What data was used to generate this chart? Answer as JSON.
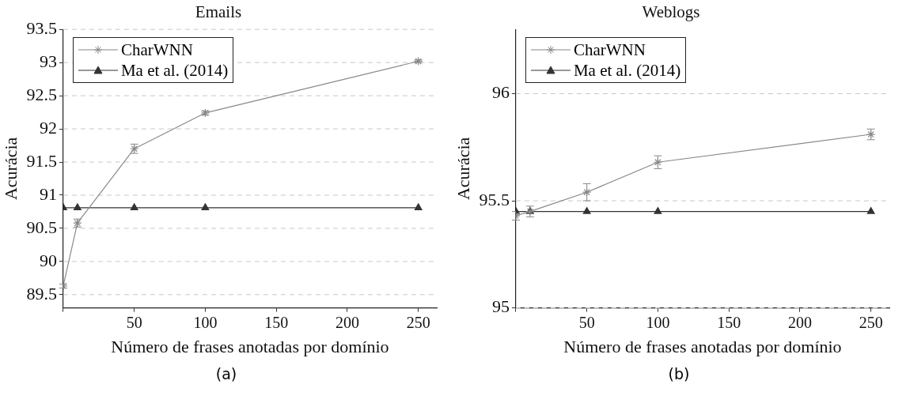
{
  "chart_data": [
    {
      "type": "line",
      "title": "Emails",
      "xlabel": "Número de frases anotadas por domínio",
      "ylabel": "Acurácia",
      "x": [
        0,
        10,
        50,
        100,
        250
      ],
      "series": [
        {
          "name": "CharWNN",
          "color": "#888888",
          "marker": "cross",
          "values": [
            89.63,
            90.58,
            91.7,
            92.24,
            93.02
          ],
          "errors": [
            0.03,
            0.06,
            0.07,
            0.03,
            0.02
          ]
        },
        {
          "name": "Ma et al. (2014)",
          "color": "#333333",
          "marker": "triangle",
          "values": [
            90.81,
            90.81,
            90.81,
            90.81,
            90.81
          ]
        }
      ],
      "xlim": [
        0,
        263
      ],
      "xticks": [
        {
          "value": 0,
          "label": null
        },
        50,
        100,
        150,
        200,
        250
      ],
      "ylim": [
        89.3,
        93.5
      ],
      "yticks": [
        89.5,
        90,
        90.5,
        91,
        91.5,
        92,
        92.5,
        93,
        93.5
      ],
      "grid": "y",
      "legend": "top left",
      "annotations": [
        "(a)"
      ]
    },
    {
      "type": "line",
      "title": "Weblogs",
      "xlabel": "Número de frases anotadas por domínio",
      "ylabel": "Acurácia",
      "x": [
        0,
        10,
        50,
        100,
        250
      ],
      "series": [
        {
          "name": "CharWNN",
          "color": "#888888",
          "marker": "cross",
          "values": [
            95.43,
            95.45,
            95.54,
            95.68,
            95.81
          ],
          "errors": [
            0.02,
            0.025,
            0.04,
            0.03,
            0.025
          ]
        },
        {
          "name": "Ma et al. (2014)",
          "color": "#333333",
          "marker": "triangle",
          "values": [
            95.45,
            95.45,
            95.45,
            95.45,
            95.45
          ]
        }
      ],
      "xlim": [
        0,
        263
      ],
      "xticks": [
        {
          "value": 0,
          "label": null
        },
        50,
        100,
        150,
        200,
        250
      ],
      "ylim": [
        95,
        96.3
      ],
      "yticks": [
        95,
        95.5,
        96
      ],
      "grid": "y",
      "legend": "top left",
      "annotations": [
        "(b)"
      ]
    }
  ]
}
